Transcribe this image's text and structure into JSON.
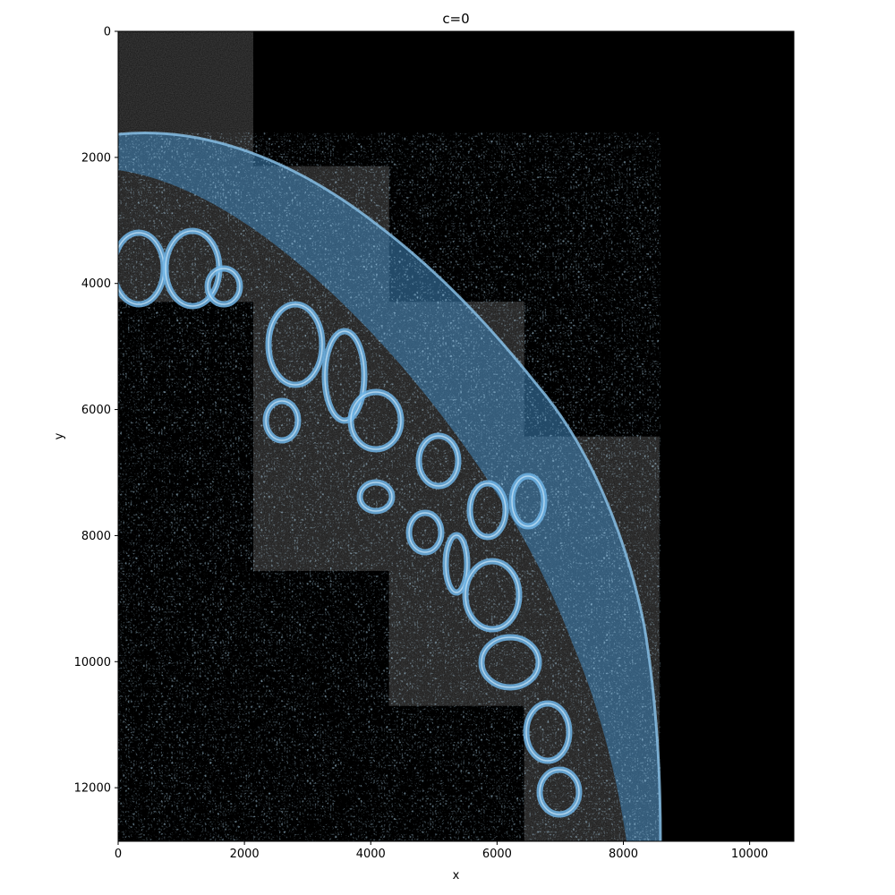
{
  "chart_data": {
    "type": "heatmap",
    "title": "c=0",
    "xlabel": "x",
    "ylabel": "y",
    "xlim": [
      0,
      10700
    ],
    "ylim": [
      12850,
      0
    ],
    "y_inverted": true,
    "xticks": [
      0,
      2000,
      4000,
      6000,
      8000,
      10000
    ],
    "yticks": [
      0,
      2000,
      4000,
      6000,
      8000,
      10000,
      12000
    ],
    "background_color": "#000000",
    "image_tiles": [
      {
        "x0": 0,
        "x1": 2140,
        "y0": 0,
        "y1": 4290
      },
      {
        "x0": 2140,
        "x1": 4290,
        "y0": 2140,
        "y1": 8560
      },
      {
        "x0": 4290,
        "x1": 6430,
        "y0": 4290,
        "y1": 10700
      },
      {
        "x0": 6430,
        "x1": 8570,
        "y0": 6430,
        "y1": 12850
      }
    ],
    "overlay_color": "#4a9fd8",
    "tissue_color": "#9e9e9e",
    "grid": false,
    "legend": "none"
  }
}
